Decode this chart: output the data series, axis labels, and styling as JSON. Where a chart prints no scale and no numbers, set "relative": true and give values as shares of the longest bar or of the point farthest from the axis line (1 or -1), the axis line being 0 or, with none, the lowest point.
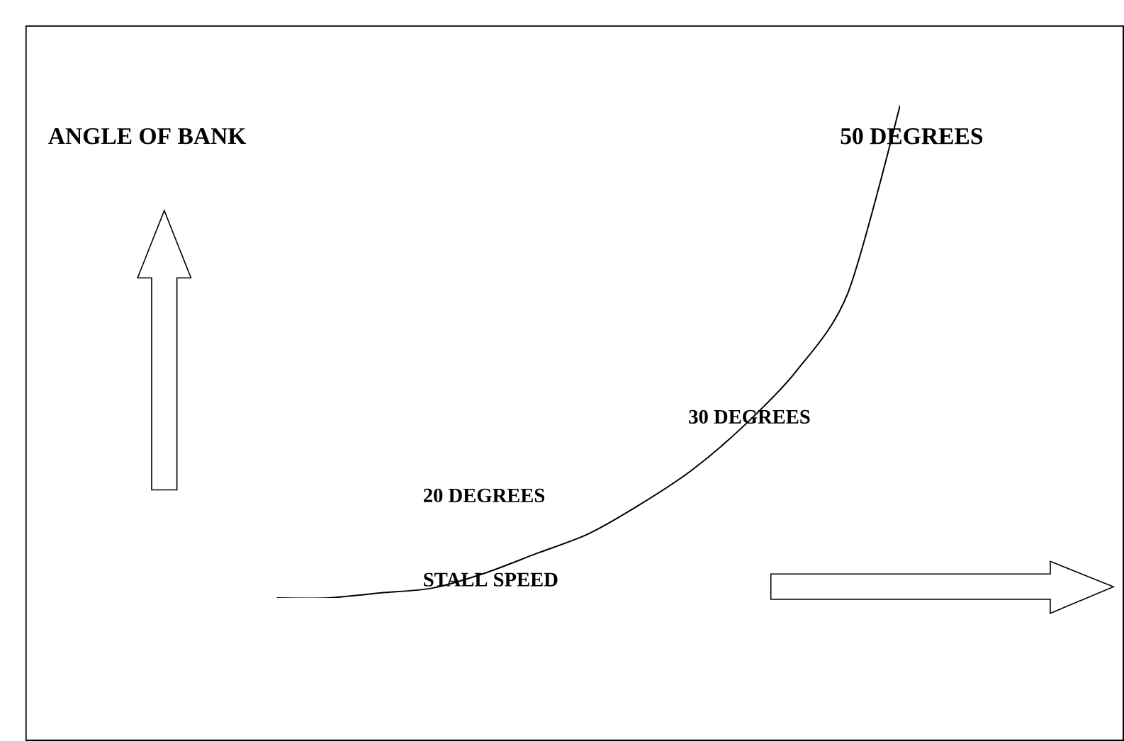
{
  "chart_data": {
    "type": "line",
    "relative": true,
    "ylabel": "ANGLE OF BANK",
    "xlabel": "STALL SPEED",
    "annotations": [
      "20 DEGREES",
      "30 DEGREES",
      "50 DEGREES"
    ],
    "categories": [
      null,
      null,
      null,
      null,
      null,
      null,
      null,
      null,
      null,
      null,
      null,
      null,
      null
    ],
    "series": [
      {
        "color": "#000000",
        "values": [
          0,
          0.0,
          0.01,
          0.02,
          0.05,
          0.09,
          0.13,
          0.19,
          0.26,
          0.35,
          0.46,
          0.62,
          1.0
        ]
      }
    ],
    "marker": "none",
    "line_style": "solid"
  }
}
